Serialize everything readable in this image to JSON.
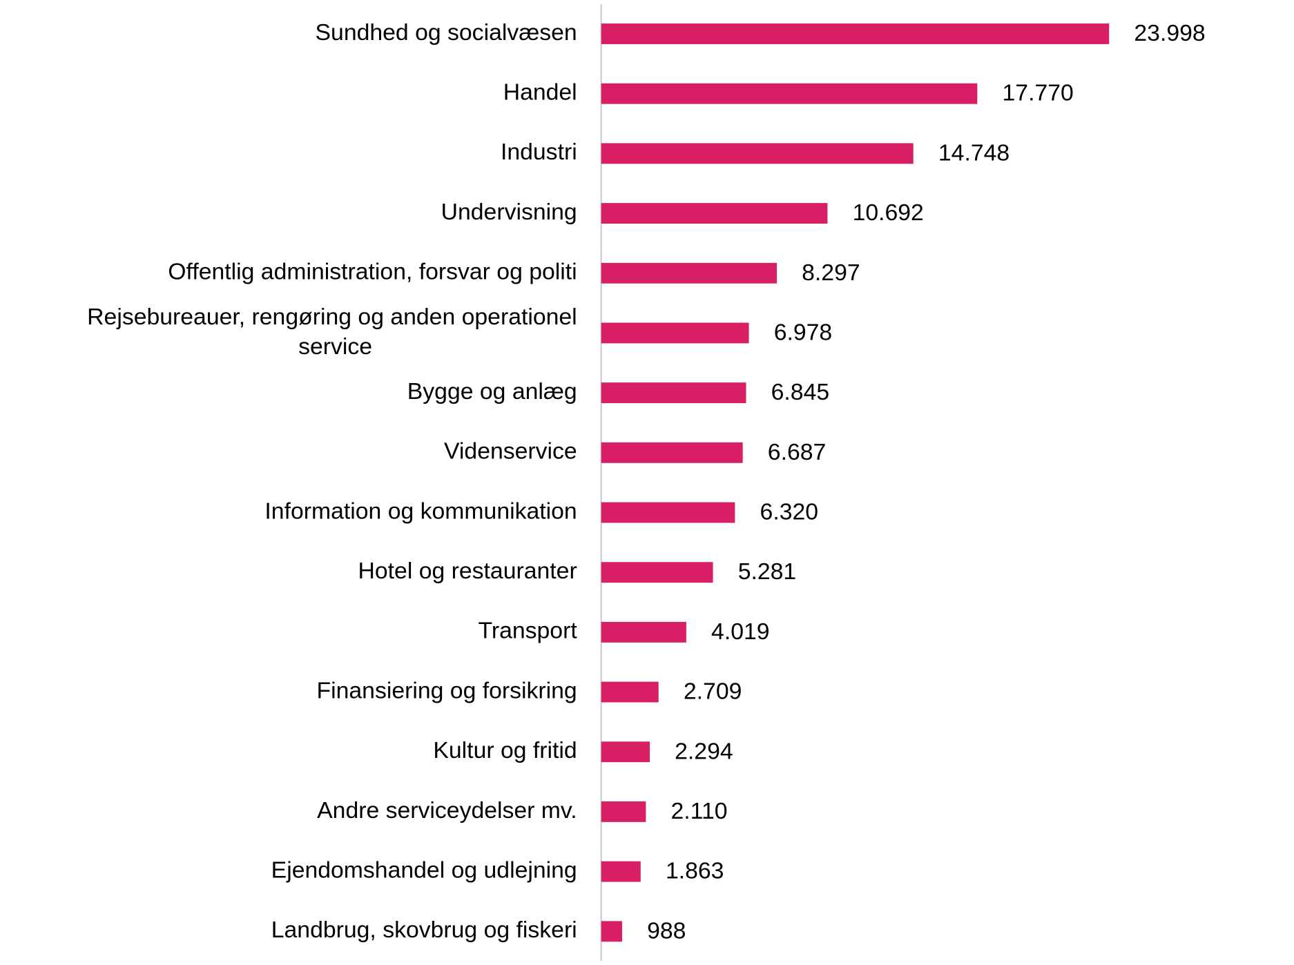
{
  "chart_data": {
    "type": "bar",
    "orientation": "horizontal",
    "color": "#d81e64",
    "categories": [
      "Sundhed og socialvæsen",
      "Handel",
      "Industri",
      "Undervisning",
      "Offentlig administration, forsvar og politi",
      "Rejsebureauer, rengøring og anden operationel service",
      "Bygge og anlæg",
      "Videnservice",
      "Information og kommunikation",
      "Hotel og restauranter",
      "Transport",
      "Finansiering og forsikring",
      "Kultur og fritid",
      "Andre serviceydelser  mv.",
      "Ejendomshandel og udlejning",
      "Landbrug, skovbrug og fiskeri"
    ],
    "values": [
      23998,
      17770,
      14748,
      10692,
      8297,
      6978,
      6845,
      6687,
      6320,
      5281,
      4019,
      2709,
      2294,
      2110,
      1863,
      988
    ],
    "value_labels": [
      "23.998",
      "17.770",
      "14.748",
      "10.692",
      "8.297",
      "6.978",
      "6.845",
      "6.687",
      "6.320",
      "5.281",
      "4.019",
      "2.709",
      "2.294",
      "2.110",
      "1.863",
      "988"
    ]
  }
}
